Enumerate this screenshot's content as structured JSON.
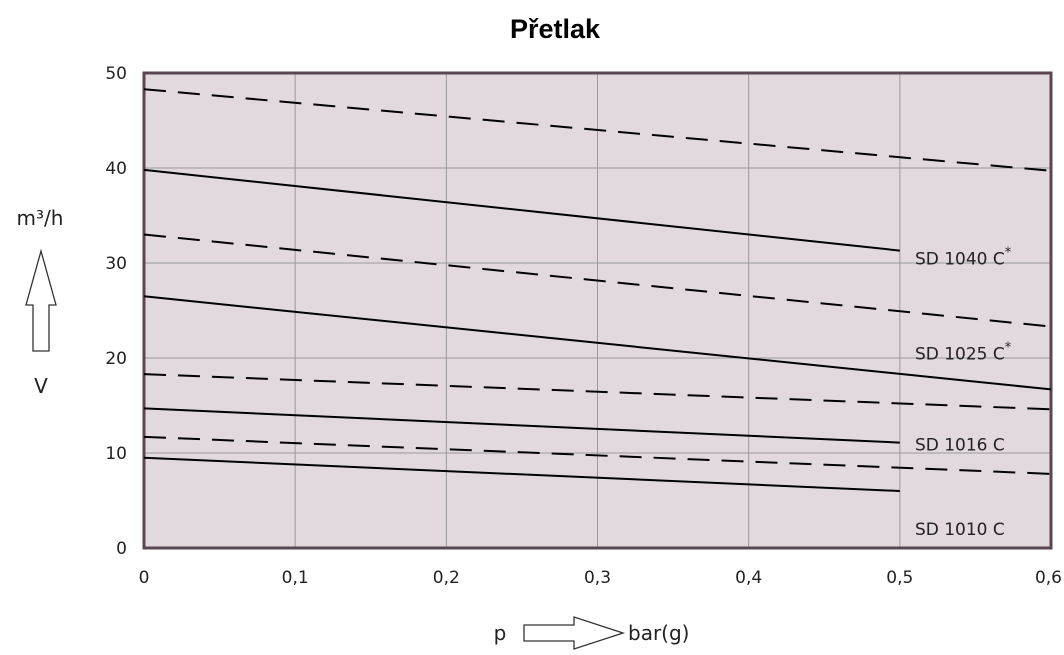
{
  "chart_data": {
    "type": "line",
    "title": "Přetlak",
    "xlabel": "p",
    "xunit": "bar(g)",
    "ylabel": "m³/h",
    "ylabel_symbol": "V",
    "xlim": [
      0,
      0.6
    ],
    "ylim": [
      0,
      50
    ],
    "x_ticks": [
      "0",
      "0,1",
      "0,2",
      "0,3",
      "0,4",
      "0,5",
      "0,6"
    ],
    "y_ticks": [
      "0",
      "10",
      "20",
      "30",
      "40",
      "50"
    ],
    "grid": true,
    "background_color": "#e2d9de",
    "frame_color": "#5a4652",
    "series": [
      {
        "style": "dashed",
        "x": [
          0,
          0.6
        ],
        "y": [
          48.3,
          39.7
        ]
      },
      {
        "style": "solid",
        "x": [
          0,
          0.5
        ],
        "y": [
          39.8,
          31.3
        ]
      },
      {
        "style": "dashed",
        "x": [
          0,
          0.6
        ],
        "y": [
          33.0,
          23.3
        ]
      },
      {
        "style": "solid",
        "x": [
          0,
          0.6
        ],
        "y": [
          26.5,
          16.7
        ]
      },
      {
        "style": "dashed",
        "x": [
          0,
          0.6
        ],
        "y": [
          18.3,
          14.6
        ]
      },
      {
        "style": "solid",
        "x": [
          0,
          0.5
        ],
        "y": [
          14.7,
          11.1
        ]
      },
      {
        "style": "dashed",
        "x": [
          0,
          0.6
        ],
        "y": [
          11.7,
          7.8
        ]
      },
      {
        "style": "solid",
        "x": [
          0,
          0.5
        ],
        "y": [
          9.5,
          6.0
        ]
      }
    ],
    "annotations": [
      {
        "text": "SD 1040 C",
        "sup": "*",
        "x": 0.51,
        "y": 30.5
      },
      {
        "text": "SD 1025 C",
        "sup": "*",
        "x": 0.51,
        "y": 20.5
      },
      {
        "text": "SD 1016 C",
        "sup": "",
        "x": 0.51,
        "y": 10.9
      },
      {
        "text": "SD 1010 C",
        "sup": "",
        "x": 0.51,
        "y": 2.0
      }
    ]
  }
}
